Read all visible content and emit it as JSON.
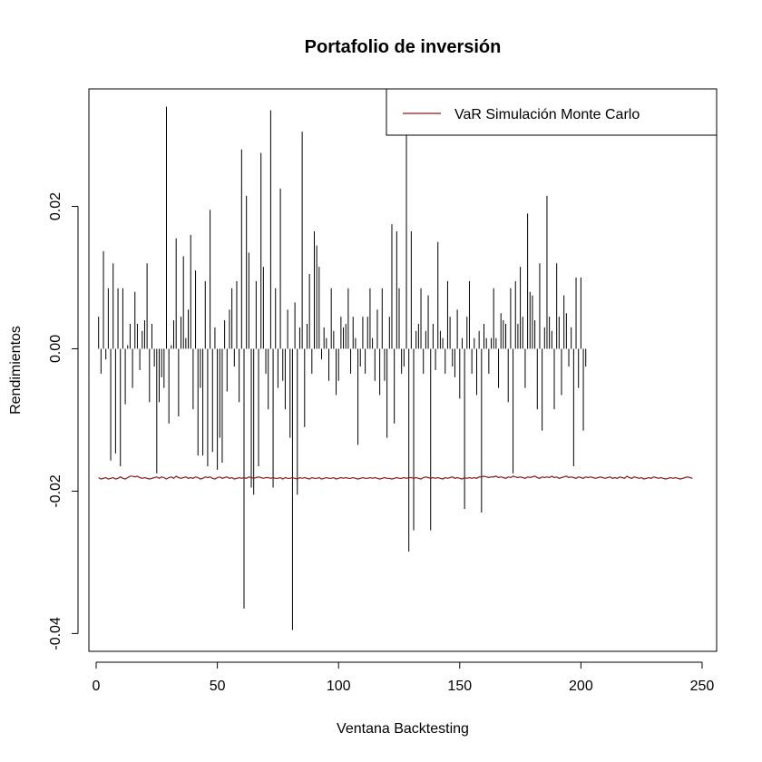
{
  "chart_data": {
    "type": "bar",
    "title": "Portafolio de inversión",
    "xlabel": "Ventana Backtesting",
    "ylabel": "Rendimientos",
    "xlim": [
      -3,
      256
    ],
    "ylim": [
      -0.0425,
      0.0365
    ],
    "x_ticks": [
      0,
      50,
      100,
      150,
      200,
      250
    ],
    "x_tick_labels": [
      "0",
      "50",
      "100",
      "150",
      "200",
      "250"
    ],
    "y_ticks": [
      -0.04,
      -0.02,
      0.0,
      0.02
    ],
    "y_tick_labels": [
      "-0.04",
      "-0.02",
      "0.00",
      "0.02"
    ],
    "grid": false,
    "legend": {
      "position": "top-right",
      "entries": [
        {
          "label": "VaR Simulación Monte Carlo",
          "color": "#8b1a1a"
        }
      ]
    },
    "series": [
      {
        "kind": "histogram-bars",
        "color": "#000000",
        "x_start": 1,
        "values": [
          0.0045,
          -0.0035,
          0.0137,
          -0.0015,
          0.0085,
          -0.0157,
          0.012,
          -0.0147,
          0.0085,
          -0.0165,
          0.0085,
          -0.0078,
          0.0005,
          0.0035,
          -0.0055,
          0.008,
          0.0035,
          -0.003,
          0.0025,
          0.004,
          0.012,
          -0.0075,
          0.0035,
          -0.0025,
          -0.0175,
          -0.0075,
          -0.004,
          -0.0055,
          0.034,
          -0.0105,
          0.0005,
          0.004,
          0.0155,
          -0.0095,
          0.0045,
          0.013,
          0.0015,
          0.0055,
          0.016,
          -0.0085,
          0.011,
          -0.015,
          -0.0055,
          -0.015,
          0.0095,
          -0.0165,
          0.0195,
          -0.0145,
          0.003,
          -0.017,
          -0.0125,
          -0.016,
          0.004,
          -0.006,
          0.0055,
          0.0085,
          -0.0025,
          0.0095,
          -0.0075,
          0.028,
          -0.0365,
          0.0215,
          0.0135,
          -0.0195,
          -0.0205,
          0.0095,
          -0.0165,
          0.0275,
          0.0115,
          -0.0035,
          -0.0085,
          0.0335,
          -0.0195,
          0.0085,
          -0.0055,
          0.0225,
          -0.0045,
          -0.0085,
          0.0055,
          -0.0125,
          -0.0395,
          0.0065,
          -0.0205,
          0.003,
          0.0305,
          -0.011,
          0.0035,
          0.0105,
          -0.0035,
          0.0165,
          0.0145,
          0.0115,
          -0.0015,
          0.003,
          0.0015,
          -0.0045,
          0.0085,
          0.0025,
          -0.0065,
          -0.0045,
          0.0045,
          0.003,
          0.0035,
          0.0085,
          -0.0035,
          0.0045,
          0.0015,
          -0.0135,
          -0.0025,
          0.0045,
          -0.0035,
          0.0045,
          0.0085,
          0.0015,
          -0.0045,
          0.0055,
          -0.0065,
          0.0085,
          -0.0045,
          -0.0125,
          0.0045,
          0.0175,
          -0.0105,
          0.0165,
          0.0085,
          -0.0035,
          -0.0025,
          0.0305,
          -0.0285,
          0.0165,
          -0.0255,
          0.0025,
          0.0035,
          0.0085,
          -0.0035,
          0.0025,
          0.0075,
          -0.0255,
          0.0035,
          -0.003,
          0.015,
          0.0025,
          0.0015,
          -0.0035,
          0.0095,
          0.0045,
          -0.0025,
          -0.004,
          0.0055,
          -0.007,
          0.0015,
          -0.0225,
          0.0045,
          0.0095,
          -0.0035,
          0.0015,
          -0.0065,
          0.0025,
          -0.023,
          0.0035,
          0.0015,
          -0.0035,
          0.0015,
          0.0085,
          0.0015,
          -0.0055,
          0.005,
          0.004,
          0.0035,
          -0.0075,
          0.0085,
          -0.0175,
          0.0095,
          0.0035,
          0.0115,
          0.0045,
          -0.0055,
          0.019,
          0.008,
          0.0075,
          0.004,
          -0.0085,
          0.012,
          -0.0115,
          0.003,
          0.0215,
          0.0045,
          0.0025,
          -0.0085,
          0.012,
          0.0045,
          -0.0065,
          0.0075,
          0.005,
          -0.0025,
          0.003,
          -0.0165,
          0.01,
          -0.0055,
          0.01,
          -0.0115,
          -0.0025
        ]
      },
      {
        "name": "VaR Simulación Monte Carlo",
        "kind": "line",
        "color": "#8b1a1a",
        "x_start": 1,
        "values": [
          -0.0181,
          -0.0183,
          -0.0182,
          -0.0181,
          -0.0183,
          -0.0182,
          -0.0181,
          -0.0183,
          -0.0182,
          -0.018,
          -0.0182,
          -0.0183,
          -0.0181,
          -0.0179,
          -0.0179,
          -0.018,
          -0.0179,
          -0.0181,
          -0.0182,
          -0.0181,
          -0.0182,
          -0.0183,
          -0.0182,
          -0.0181,
          -0.018,
          -0.0182,
          -0.018,
          -0.0181,
          -0.0183,
          -0.0181,
          -0.018,
          -0.0182,
          -0.0179,
          -0.0181,
          -0.0182,
          -0.0181,
          -0.018,
          -0.0182,
          -0.0181,
          -0.0182,
          -0.018,
          -0.0181,
          -0.0183,
          -0.0182,
          -0.018,
          -0.0181,
          -0.018,
          -0.0182,
          -0.0183,
          -0.0181,
          -0.018,
          -0.0182,
          -0.0181,
          -0.018,
          -0.0182,
          -0.0181,
          -0.0183,
          -0.0182,
          -0.0181,
          -0.0182,
          -0.0181,
          -0.0182,
          -0.018,
          -0.0181,
          -0.0182,
          -0.0181,
          -0.018,
          -0.0181,
          -0.0182,
          -0.0181,
          -0.0181,
          -0.0182,
          -0.0181,
          -0.0182,
          -0.0182,
          -0.0181,
          -0.0183,
          -0.0181,
          -0.0182,
          -0.0182,
          -0.0181,
          -0.0182,
          -0.0183,
          -0.0181,
          -0.0182,
          -0.0181,
          -0.0182,
          -0.0183,
          -0.0181,
          -0.0182,
          -0.0182,
          -0.0181,
          -0.0183,
          -0.0182,
          -0.0181,
          -0.0182,
          -0.0182,
          -0.0181,
          -0.0183,
          -0.0182,
          -0.0181,
          -0.0182,
          -0.0181,
          -0.0182,
          -0.0182,
          -0.0181,
          -0.0182,
          -0.0183,
          -0.0182,
          -0.0181,
          -0.0182,
          -0.0182,
          -0.0181,
          -0.0182,
          -0.0181,
          -0.0182,
          -0.0183,
          -0.0182,
          -0.0181,
          -0.0182,
          -0.0182,
          -0.0183,
          -0.0182,
          -0.0181,
          -0.0182,
          -0.0182,
          -0.0181,
          -0.0182,
          -0.0181,
          -0.0181,
          -0.0182,
          -0.0181,
          -0.0182,
          -0.0183,
          -0.0181,
          -0.018,
          -0.0181,
          -0.0182,
          -0.0181,
          -0.0182,
          -0.0181,
          -0.0182,
          -0.0183,
          -0.0181,
          -0.0182,
          -0.0181,
          -0.018,
          -0.0182,
          -0.0181,
          -0.0182,
          -0.0183,
          -0.0181,
          -0.0182,
          -0.0181,
          -0.0182,
          -0.0181,
          -0.0182,
          -0.018,
          -0.018,
          -0.0179,
          -0.018,
          -0.0181,
          -0.018,
          -0.018,
          -0.0179,
          -0.0181,
          -0.018,
          -0.0181,
          -0.0182,
          -0.018,
          -0.0181,
          -0.0179,
          -0.018,
          -0.0181,
          -0.018,
          -0.0181,
          -0.0182,
          -0.018,
          -0.0181,
          -0.018,
          -0.0179,
          -0.0181,
          -0.0182,
          -0.018,
          -0.0181,
          -0.018,
          -0.0181,
          -0.0179,
          -0.0181,
          -0.018,
          -0.0182,
          -0.0181,
          -0.018,
          -0.0179,
          -0.0181,
          -0.018,
          -0.0181,
          -0.0182,
          -0.018,
          -0.0181,
          -0.0182,
          -0.018,
          -0.0181,
          -0.018,
          -0.0181,
          -0.0182,
          -0.0181,
          -0.018,
          -0.0181,
          -0.0182,
          -0.0181,
          -0.018,
          -0.0182,
          -0.0181,
          -0.0182,
          -0.018,
          -0.0181,
          -0.0182,
          -0.0179,
          -0.0181,
          -0.0182,
          -0.018,
          -0.0181,
          -0.0182,
          -0.0181,
          -0.0183,
          -0.0182,
          -0.0181,
          -0.0182,
          -0.018,
          -0.0181,
          -0.0182,
          -0.0181,
          -0.0182,
          -0.0183,
          -0.0182,
          -0.0181,
          -0.0182,
          -0.0181,
          -0.0182,
          -0.0183,
          -0.0182,
          -0.0181,
          -0.018,
          -0.0181,
          -0.0182
        ]
      }
    ]
  }
}
